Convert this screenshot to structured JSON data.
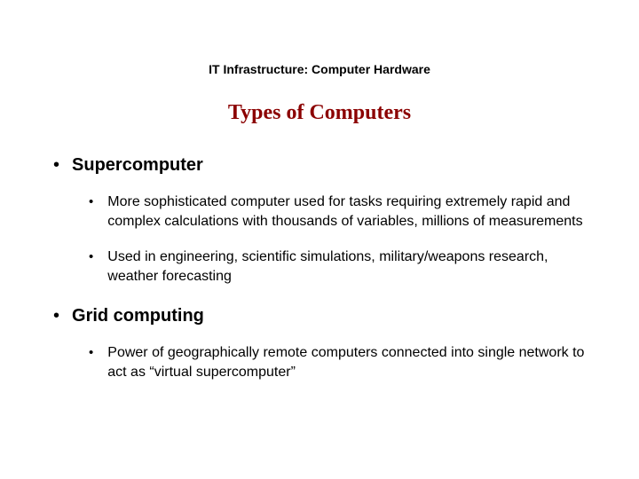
{
  "header": "IT Infrastructure: Computer Hardware",
  "title": "Types of Computers",
  "colors": {
    "title_color": "#8b0000",
    "text_color": "#000000",
    "background": "#ffffff"
  },
  "typography": {
    "header_fontsize": 14,
    "title_fontsize": 24,
    "title_fontfamily": "Times New Roman",
    "level1_fontsize": 20,
    "level1_fontweight": "bold",
    "level2_fontsize": 16,
    "body_fontfamily": "Arial"
  },
  "bullets": {
    "level1_glyph": "•",
    "level2_glyph": "•"
  },
  "items": [
    {
      "label": "Supercomputer",
      "subitems": [
        "More sophisticated computer used for tasks requiring extremely rapid and complex calculations with thousands of variables, millions of measurements",
        "Used in engineering, scientific simulations, military/weapons research, weather forecasting"
      ]
    },
    {
      "label": "Grid computing",
      "subitems": [
        "Power of geographically remote computers connected into single network to act as “virtual supercomputer”"
      ]
    }
  ]
}
